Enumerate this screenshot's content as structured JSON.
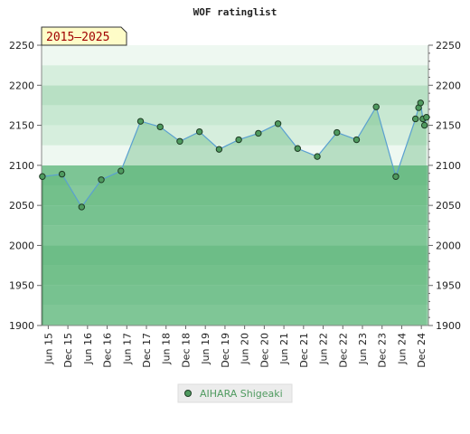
{
  "chart_data": {
    "type": "area",
    "title": "WOF ratinglist",
    "badge": "2015–2025",
    "ylim": [
      1900,
      2250
    ],
    "yticks": [
      1900,
      1950,
      2000,
      2050,
      2100,
      2150,
      2200,
      2250
    ],
    "xlim": [
      2015.25,
      2025.1
    ],
    "xticks": [
      {
        "x": 2015.42,
        "label": "Jun 15"
      },
      {
        "x": 2015.92,
        "label": "Dec 15"
      },
      {
        "x": 2016.42,
        "label": "Jun 16"
      },
      {
        "x": 2016.92,
        "label": "Dec 16"
      },
      {
        "x": 2017.42,
        "label": "Jun 17"
      },
      {
        "x": 2017.92,
        "label": "Dec 17"
      },
      {
        "x": 2018.42,
        "label": "Jun 18"
      },
      {
        "x": 2018.92,
        "label": "Dec 18"
      },
      {
        "x": 2019.42,
        "label": "Jun 19"
      },
      {
        "x": 2019.92,
        "label": "Dec 19"
      },
      {
        "x": 2020.42,
        "label": "Jun 20"
      },
      {
        "x": 2020.92,
        "label": "Dec 20"
      },
      {
        "x": 2021.42,
        "label": "Jun 21"
      },
      {
        "x": 2021.92,
        "label": "Dec 21"
      },
      {
        "x": 2022.42,
        "label": "Jun 22"
      },
      {
        "x": 2022.92,
        "label": "Dec 22"
      },
      {
        "x": 2023.42,
        "label": "Jun 23"
      },
      {
        "x": 2023.92,
        "label": "Dec 23"
      },
      {
        "x": 2024.42,
        "label": "Jun 24"
      },
      {
        "x": 2024.92,
        "label": "Dec 24"
      }
    ],
    "series": [
      {
        "name": "AIHARA Shigeaki",
        "color": "#5aa0d0",
        "marker_color": "#4f9a5f",
        "points": [
          [
            2015.27,
            2086
          ],
          [
            2015.77,
            2089
          ],
          [
            2016.27,
            2048
          ],
          [
            2016.77,
            2082
          ],
          [
            2017.27,
            2093
          ],
          [
            2017.77,
            2155
          ],
          [
            2018.27,
            2148
          ],
          [
            2018.77,
            2130
          ],
          [
            2019.27,
            2142
          ],
          [
            2019.77,
            2120
          ],
          [
            2020.27,
            2132
          ],
          [
            2020.77,
            2140
          ],
          [
            2021.27,
            2152
          ],
          [
            2021.77,
            2121
          ],
          [
            2022.27,
            2111
          ],
          [
            2022.77,
            2141
          ],
          [
            2023.27,
            2132
          ],
          [
            2023.77,
            2173
          ],
          [
            2024.27,
            2086
          ],
          [
            2024.77,
            2158
          ],
          [
            2024.85,
            2172
          ],
          [
            2024.9,
            2178
          ],
          [
            2024.96,
            2158
          ],
          [
            2025.0,
            2150
          ],
          [
            2025.05,
            2160
          ]
        ]
      }
    ],
    "bands": [
      {
        "from": 1900,
        "to": 1925,
        "color": "#99d3ac"
      },
      {
        "from": 1925,
        "to": 1950,
        "color": "#8dcda3"
      },
      {
        "from": 1950,
        "to": 1975,
        "color": "#86c99c"
      },
      {
        "from": 1975,
        "to": 2000,
        "color": "#7dc595"
      },
      {
        "from": 2000,
        "to": 2025,
        "color": "#99d3ac"
      },
      {
        "from": 2025,
        "to": 2050,
        "color": "#8dcda3"
      },
      {
        "from": 2050,
        "to": 2075,
        "color": "#86c99c"
      },
      {
        "from": 2075,
        "to": 2100,
        "color": "#7dc595"
      },
      {
        "from": 2100,
        "to": 2125,
        "color": "#eef8f1"
      },
      {
        "from": 2125,
        "to": 2150,
        "color": "#d6eedd"
      },
      {
        "from": 2150,
        "to": 2175,
        "color": "#c8e8d2"
      },
      {
        "from": 2175,
        "to": 2200,
        "color": "#b8e0c4"
      },
      {
        "from": 2200,
        "to": 2225,
        "color": "#d6eedd"
      },
      {
        "from": 2225,
        "to": 2250,
        "color": "#eef8f1"
      }
    ]
  }
}
